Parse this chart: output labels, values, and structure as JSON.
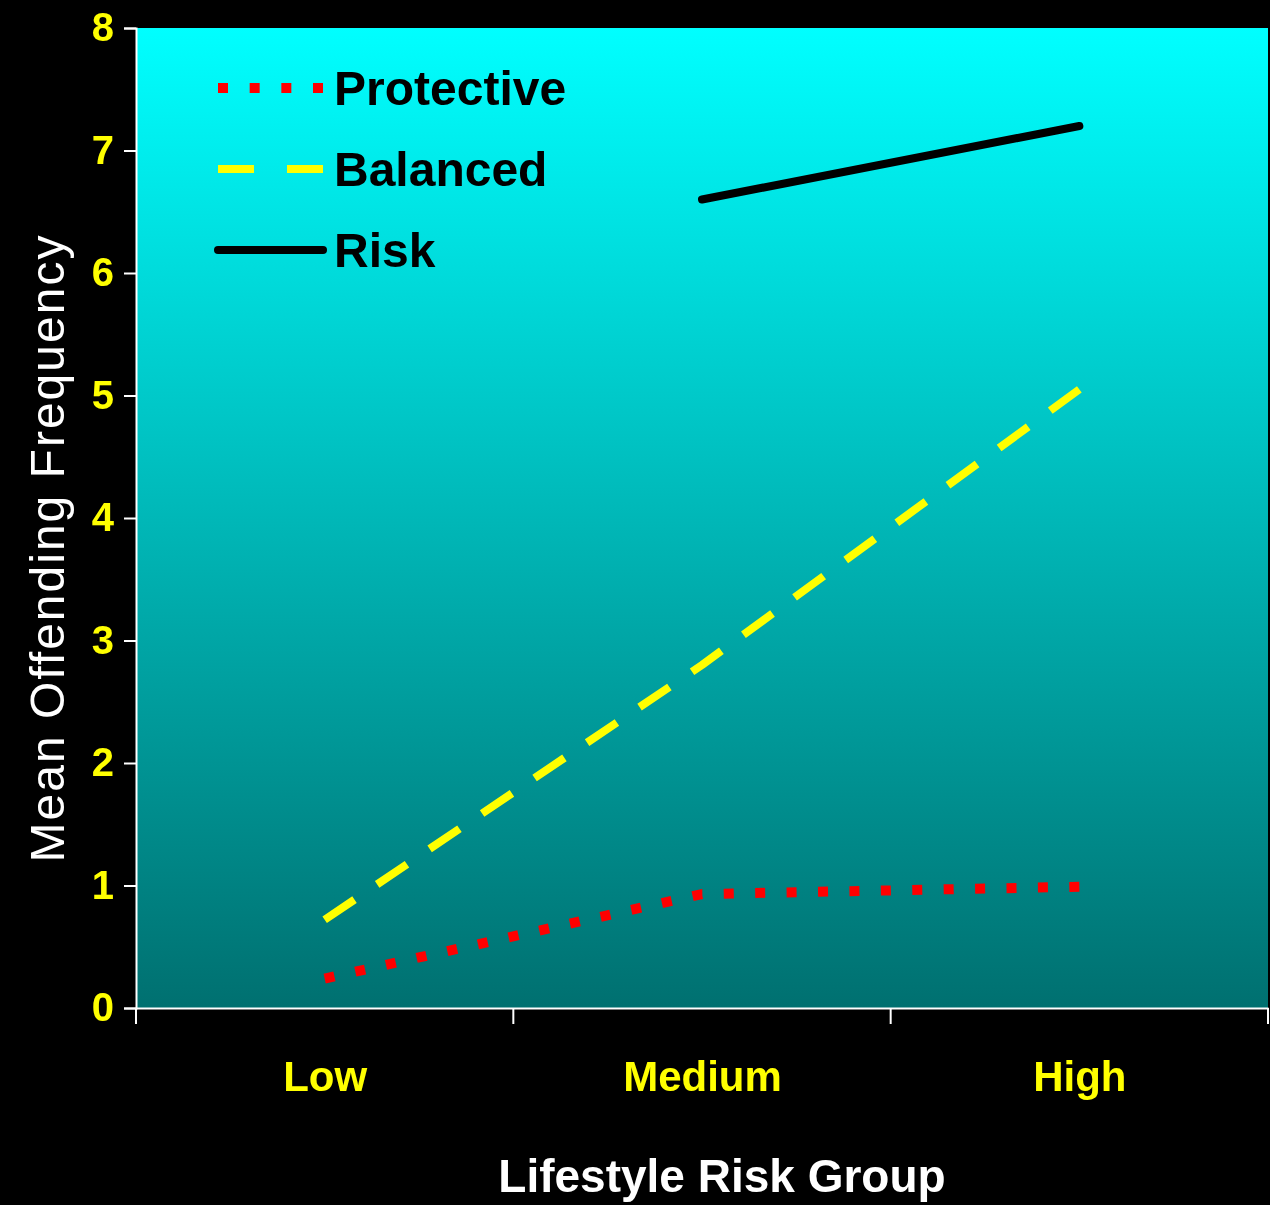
{
  "chart_data": {
    "type": "line",
    "xlabel": "Lifestyle Risk Group",
    "ylabel": "Mean Offending Frequency",
    "categories": [
      "Low",
      "Medium",
      "High"
    ],
    "series": [
      {
        "name": "Protective",
        "color": "#ff0000",
        "line_style": "dotted",
        "values": [
          0.24,
          0.93,
          0.99
        ]
      },
      {
        "name": "Balanced",
        "color": "#ffff00",
        "line_style": "dashed",
        "values": [
          0.72,
          2.8,
          5.05
        ]
      },
      {
        "name": "Risk",
        "color": "#000000",
        "line_style": "solid",
        "values": [
          null,
          6.6,
          7.2
        ]
      }
    ],
    "ylim": [
      0,
      8
    ],
    "yticks": [
      0,
      1,
      2,
      3,
      4,
      5,
      6,
      7,
      8
    ],
    "legend": "top left",
    "grid": false
  }
}
